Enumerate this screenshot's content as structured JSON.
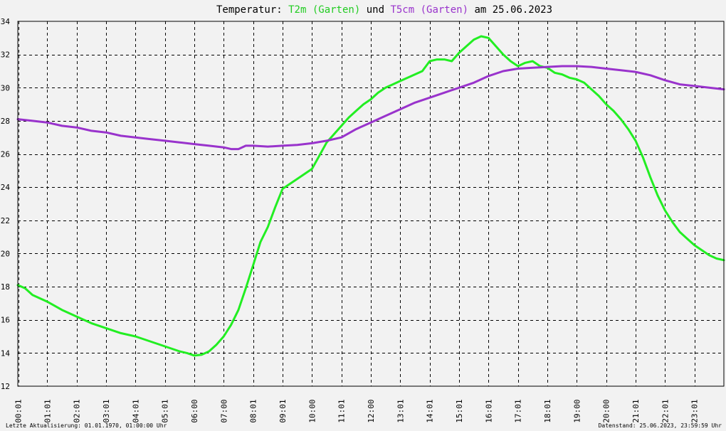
{
  "chart_data": {
    "type": "line",
    "title_parts": [
      {
        "text": "Temperatur: ",
        "color": "#000000"
      },
      {
        "text": "T2m (Garten)",
        "color": "#22cc22"
      },
      {
        "text": " und ",
        "color": "#000000"
      },
      {
        "text": "T5cm (Garten)",
        "color": "#9933cc"
      },
      {
        "text": " am 25.06.2023",
        "color": "#000000"
      }
    ],
    "ylim": [
      12,
      34
    ],
    "yticks": [
      12,
      14,
      16,
      18,
      20,
      22,
      24,
      26,
      28,
      30,
      32,
      34
    ],
    "xlim": [
      0,
      24
    ],
    "xticks": [
      {
        "x": 0.0167,
        "label": "00:01"
      },
      {
        "x": 1,
        "label": "01:01"
      },
      {
        "x": 2,
        "label": "02:01"
      },
      {
        "x": 3,
        "label": "03:01"
      },
      {
        "x": 4,
        "label": "04:01"
      },
      {
        "x": 5,
        "label": "05:01"
      },
      {
        "x": 6,
        "label": "06:00"
      },
      {
        "x": 7,
        "label": "07:00"
      },
      {
        "x": 8,
        "label": "08:01"
      },
      {
        "x": 9,
        "label": "09:01"
      },
      {
        "x": 10,
        "label": "10:00"
      },
      {
        "x": 11,
        "label": "11:01"
      },
      {
        "x": 12,
        "label": "12:00"
      },
      {
        "x": 13,
        "label": "13:01"
      },
      {
        "x": 14,
        "label": "14:01"
      },
      {
        "x": 15,
        "label": "15:01"
      },
      {
        "x": 16,
        "label": "16:01"
      },
      {
        "x": 17,
        "label": "17:01"
      },
      {
        "x": 18,
        "label": "18:01"
      },
      {
        "x": 19,
        "label": "19:00"
      },
      {
        "x": 20,
        "label": "20:00"
      },
      {
        "x": 21,
        "label": "21:01"
      },
      {
        "x": 22,
        "label": "22:01"
      },
      {
        "x": 23,
        "label": "23:01"
      }
    ],
    "grid": true,
    "series": [
      {
        "name": "T2m (Garten)",
        "color": "#22ee22",
        "x": [
          0,
          0.25,
          0.5,
          1,
          1.5,
          2,
          2.5,
          3,
          3.5,
          4,
          4.5,
          5,
          5.5,
          5.75,
          6,
          6.25,
          6.5,
          6.75,
          7,
          7.25,
          7.5,
          7.75,
          8,
          8.25,
          8.5,
          8.75,
          9,
          9.25,
          9.5,
          9.75,
          10,
          10.25,
          10.5,
          10.75,
          11,
          11.25,
          11.5,
          11.75,
          12,
          12.25,
          12.5,
          12.75,
          13,
          13.25,
          13.5,
          13.75,
          14,
          14.25,
          14.5,
          14.75,
          15,
          15.25,
          15.5,
          15.75,
          16,
          16.25,
          16.5,
          16.75,
          17,
          17.25,
          17.5,
          17.75,
          18,
          18.25,
          18.5,
          18.75,
          19,
          19.25,
          19.5,
          19.75,
          20,
          20.25,
          20.5,
          20.75,
          21,
          21.25,
          21.5,
          21.75,
          22,
          22.25,
          22.5,
          22.75,
          23,
          23.25,
          23.5,
          23.75,
          24
        ],
        "values": [
          18.1,
          17.9,
          17.5,
          17.1,
          16.6,
          16.2,
          15.8,
          15.5,
          15.2,
          15.0,
          14.7,
          14.4,
          14.1,
          14.0,
          13.85,
          13.9,
          14.1,
          14.5,
          15.0,
          15.7,
          16.6,
          17.9,
          19.3,
          20.7,
          21.6,
          22.8,
          23.9,
          24.2,
          24.5,
          24.8,
          25.1,
          25.9,
          26.7,
          27.2,
          27.7,
          28.2,
          28.6,
          29.0,
          29.3,
          29.7,
          30.0,
          30.2,
          30.4,
          30.6,
          30.8,
          31.0,
          31.6,
          31.7,
          31.7,
          31.6,
          32.1,
          32.5,
          32.9,
          33.1,
          33.0,
          32.5,
          32.0,
          31.6,
          31.3,
          31.5,
          31.6,
          31.3,
          31.2,
          30.9,
          30.8,
          30.6,
          30.5,
          30.3,
          29.9,
          29.5,
          29.0,
          28.6,
          28.1,
          27.5,
          26.8,
          25.8,
          24.6,
          23.5,
          22.6,
          21.9,
          21.3,
          20.9,
          20.5,
          20.2,
          19.9,
          19.7,
          19.6
        ]
      },
      {
        "name": "T5cm (Garten)",
        "color": "#9933cc",
        "x": [
          0,
          0.5,
          1,
          1.5,
          2,
          2.5,
          3,
          3.5,
          4,
          4.5,
          5,
          5.5,
          6,
          6.5,
          7,
          7.25,
          7.5,
          7.75,
          8,
          8.5,
          9,
          9.5,
          10,
          10.5,
          11,
          11.5,
          12,
          12.5,
          13,
          13.5,
          14,
          14.5,
          15,
          15.5,
          16,
          16.5,
          17,
          17.5,
          18,
          18.5,
          19,
          19.5,
          20,
          20.5,
          21,
          21.5,
          22,
          22.5,
          23,
          23.5,
          24
        ],
        "values": [
          28.1,
          28.0,
          27.9,
          27.7,
          27.6,
          27.4,
          27.3,
          27.1,
          27.0,
          26.9,
          26.8,
          26.7,
          26.6,
          26.5,
          26.4,
          26.3,
          26.3,
          26.5,
          26.5,
          26.45,
          26.5,
          26.55,
          26.65,
          26.8,
          27.0,
          27.5,
          27.9,
          28.3,
          28.7,
          29.1,
          29.4,
          29.7,
          30.0,
          30.3,
          30.7,
          31.0,
          31.15,
          31.2,
          31.25,
          31.3,
          31.3,
          31.25,
          31.15,
          31.05,
          30.95,
          30.75,
          30.45,
          30.2,
          30.1,
          30.0,
          29.9
        ]
      }
    ],
    "footer_left": "Letzte Aktualisierung: 01.01.1970, 01:00:00 Uhr",
    "footer_right": "Datenstand: 25.06.2023, 23:59:59 Uhr"
  }
}
